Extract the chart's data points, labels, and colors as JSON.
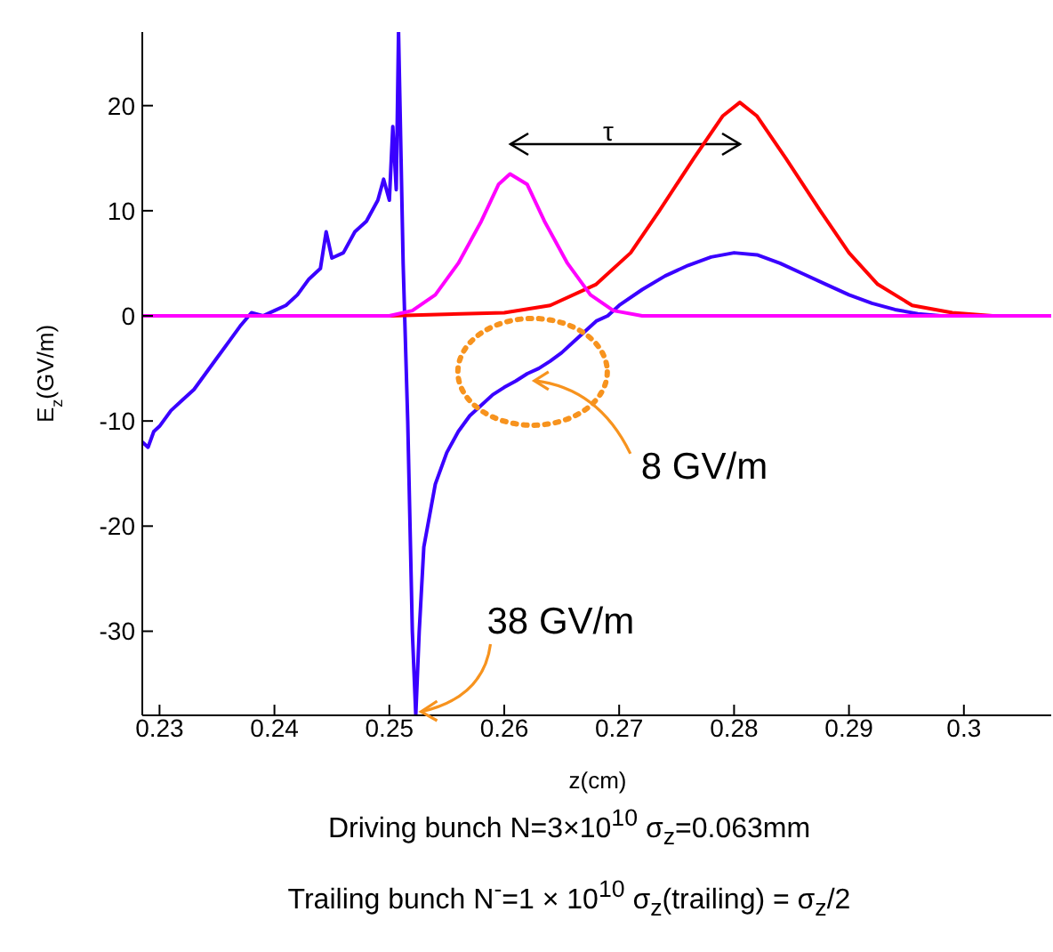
{
  "chart_data": {
    "type": "line",
    "xlabel": "z(cm)",
    "ylabel": "E$_{z}$(GV/m)",
    "xlim": [
      0.2285,
      0.3076
    ],
    "xticks": [
      0.23,
      0.24,
      0.25,
      0.26,
      0.27,
      0.28,
      0.29,
      0.3
    ],
    "ylim": [
      -38,
      27
    ],
    "yticks": [
      -30,
      -20,
      -10,
      0,
      10,
      20
    ],
    "grid": false,
    "marker": "none",
    "line_style": "solid",
    "series": [
      {
        "color": "#3a00ff",
        "x": [
          0.2285,
          0.229,
          0.2295,
          0.23,
          0.231,
          0.232,
          0.233,
          0.234,
          0.235,
          0.236,
          0.237,
          0.238,
          0.239,
          0.24,
          0.241,
          0.242,
          0.243,
          0.244,
          0.2445,
          0.245,
          0.246,
          0.247,
          0.248,
          0.249,
          0.2495,
          0.25,
          0.2503,
          0.2506,
          0.2508,
          0.2512,
          0.2516,
          0.252,
          0.2523,
          0.2526,
          0.253,
          0.254,
          0.255,
          0.256,
          0.257,
          0.258,
          0.259,
          0.26,
          0.261,
          0.262,
          0.263,
          0.264,
          0.265,
          0.266,
          0.267,
          0.268,
          0.269,
          0.27,
          0.272,
          0.274,
          0.276,
          0.278,
          0.28,
          0.282,
          0.284,
          0.286,
          0.288,
          0.29,
          0.292,
          0.294,
          0.296,
          0.298,
          0.3076
        ],
        "values": [
          -12,
          -12.5,
          -11,
          -10.5,
          -9,
          -8,
          -7,
          -5.5,
          -4,
          -2.5,
          -1,
          0.3,
          0,
          0.5,
          1,
          2,
          3.5,
          4.5,
          8,
          5.5,
          6,
          8,
          9,
          11,
          13,
          11,
          18,
          12,
          27,
          5,
          -10,
          -30,
          -38,
          -30,
          -22,
          -16,
          -13,
          -11,
          -9.5,
          -8.5,
          -7.5,
          -6.8,
          -6.2,
          -5.5,
          -5,
          -4.3,
          -3.5,
          -2.5,
          -1.5,
          -0.5,
          0,
          1,
          2.5,
          3.8,
          4.8,
          5.6,
          6,
          5.8,
          5,
          4,
          3,
          2,
          1.2,
          0.6,
          0.2,
          0,
          0
        ]
      },
      {
        "color": "#ff0000",
        "x": [
          0.2285,
          0.25,
          0.26,
          0.264,
          0.268,
          0.271,
          0.2735,
          0.2765,
          0.279,
          0.2805,
          0.282,
          0.2845,
          0.2875,
          0.29,
          0.2925,
          0.2955,
          0.299,
          0.3025,
          0.3076
        ],
        "values": [
          0,
          0,
          0.3,
          1,
          3,
          6,
          10,
          15,
          19,
          20.3,
          19,
          15,
          10,
          6,
          3,
          1,
          0.3,
          0,
          0
        ]
      },
      {
        "color": "#ff00ff",
        "x": [
          0.2285,
          0.25,
          0.252,
          0.254,
          0.256,
          0.258,
          0.2595,
          0.2605,
          0.262,
          0.2635,
          0.2655,
          0.2675,
          0.2695,
          0.272,
          0.3076
        ],
        "values": [
          0,
          0,
          0.5,
          2,
          5,
          9,
          12.5,
          13.5,
          12.5,
          9,
          5,
          2,
          0.5,
          0,
          0
        ]
      }
    ],
    "annotations": [
      "τ",
      {
        "text": "8 GV/m",
        "x": 0.262,
        "y": -6
      },
      {
        "text": "38 GV/m",
        "x": 0.2523,
        "y": -38
      },
      "Driving bunch  N=3×10$^{10}$ σ$_{z}$=0.063mm",
      "Trailing bunch N$^{-}$=1 × 10$^{10}$  σ$_{z}$(trailing) = σ$_{z}$/2"
    ]
  }
}
